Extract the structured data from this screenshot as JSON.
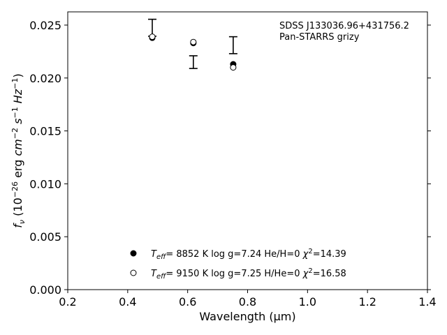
{
  "chart_data": {
    "type": "scatter",
    "title": "",
    "xlabel": "Wavelength (μm)",
    "ylabel": "f_ν (10^-26 erg cm^-2 s^-1 Hz^-1)",
    "xlim": [
      0.2,
      1.4
    ],
    "ylim": [
      0.0,
      0.02625
    ],
    "x_ticks": [
      0.2,
      0.4,
      0.6,
      0.8,
      1.0,
      1.2,
      1.4
    ],
    "x_tick_labels": [
      "0.2",
      "0.4",
      "0.6",
      "0.8",
      "1.0",
      "1.2",
      "1.4"
    ],
    "y_ticks": [
      0.0,
      0.005,
      0.01,
      0.015,
      0.02,
      0.025
    ],
    "y_tick_labels": [
      "0.000",
      "0.005",
      "0.010",
      "0.015",
      "0.020",
      "0.025"
    ],
    "grid": false,
    "annotations": {
      "object": "SDSS J133036.96+431756.2",
      "photometry": "Pan-STARRS grizy"
    },
    "observed": {
      "x": [
        0.482,
        0.619,
        0.752
      ],
      "y": [
        0.02475,
        0.0215,
        0.0231
      ],
      "err": [
        0.0008,
        0.0006,
        0.0008
      ]
    },
    "series": [
      {
        "marker": "filled-circle",
        "legend": {
          "teff_label": "=  8852 K  log g=7.24  He/H=0  ",
          "chi_label": "=14.39"
        },
        "x": [
          0.482,
          0.619,
          0.752
        ],
        "y": [
          0.0238,
          0.0233,
          0.0213
        ]
      },
      {
        "marker": "open-circle",
        "legend": {
          "teff_label": "=  9150 K  log g=7.25  H/He=0  ",
          "chi_label": "=16.58"
        },
        "x": [
          0.482,
          0.619,
          0.752
        ],
        "y": [
          0.0239,
          0.0234,
          0.021
        ]
      }
    ],
    "legend_position": "lower-center"
  }
}
